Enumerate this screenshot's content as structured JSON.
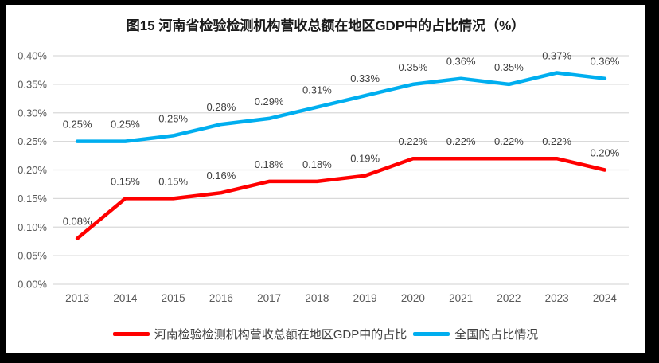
{
  "chart_data": {
    "type": "line",
    "title": "图15  河南省检验检测机构营收总额在地区GDP中的占比情况（%）",
    "categories": [
      "2013",
      "2014",
      "2015",
      "2016",
      "2017",
      "2018",
      "2019",
      "2020",
      "2021",
      "2022",
      "2023",
      "2024"
    ],
    "series": [
      {
        "name": "河南检验检测机构营收总额在地区GDP中的占比",
        "color": "#ff0000",
        "values": [
          0.08,
          0.15,
          0.15,
          0.16,
          0.18,
          0.18,
          0.19,
          0.22,
          0.22,
          0.22,
          0.22,
          0.2
        ],
        "point_labels": [
          "0.08%",
          "0.15%",
          "0.15%",
          "0.16%",
          "0.18%",
          "0.18%",
          "0.19%",
          "0.22%",
          "0.22%",
          "0.22%",
          "0.22%",
          "0.20%"
        ]
      },
      {
        "name": "全国的占比情况",
        "color": "#00aeef",
        "values": [
          0.25,
          0.25,
          0.26,
          0.28,
          0.29,
          0.31,
          0.33,
          0.35,
          0.36,
          0.35,
          0.37,
          0.36
        ],
        "point_labels": [
          "0.25%",
          "0.25%",
          "0.26%",
          "0.28%",
          "0.29%",
          "0.31%",
          "0.33%",
          "0.35%",
          "0.36%",
          "0.35%",
          "0.37%",
          "0.36%"
        ]
      }
    ],
    "y_axis": {
      "min": 0,
      "max": 0.4,
      "tick_step": 0.05,
      "tick_labels": [
        "0.00%",
        "0.05%",
        "0.10%",
        "0.15%",
        "0.20%",
        "0.25%",
        "0.30%",
        "0.35%",
        "0.40%"
      ]
    },
    "grid": true,
    "legend_position": "bottom"
  },
  "colors": {
    "gridline": "#d9d9d9",
    "axis_text": "#595959",
    "data_label_text": "#3f3f3f",
    "title_text": "#1a1a1a",
    "frame": "#000000",
    "background": "#ffffff"
  }
}
